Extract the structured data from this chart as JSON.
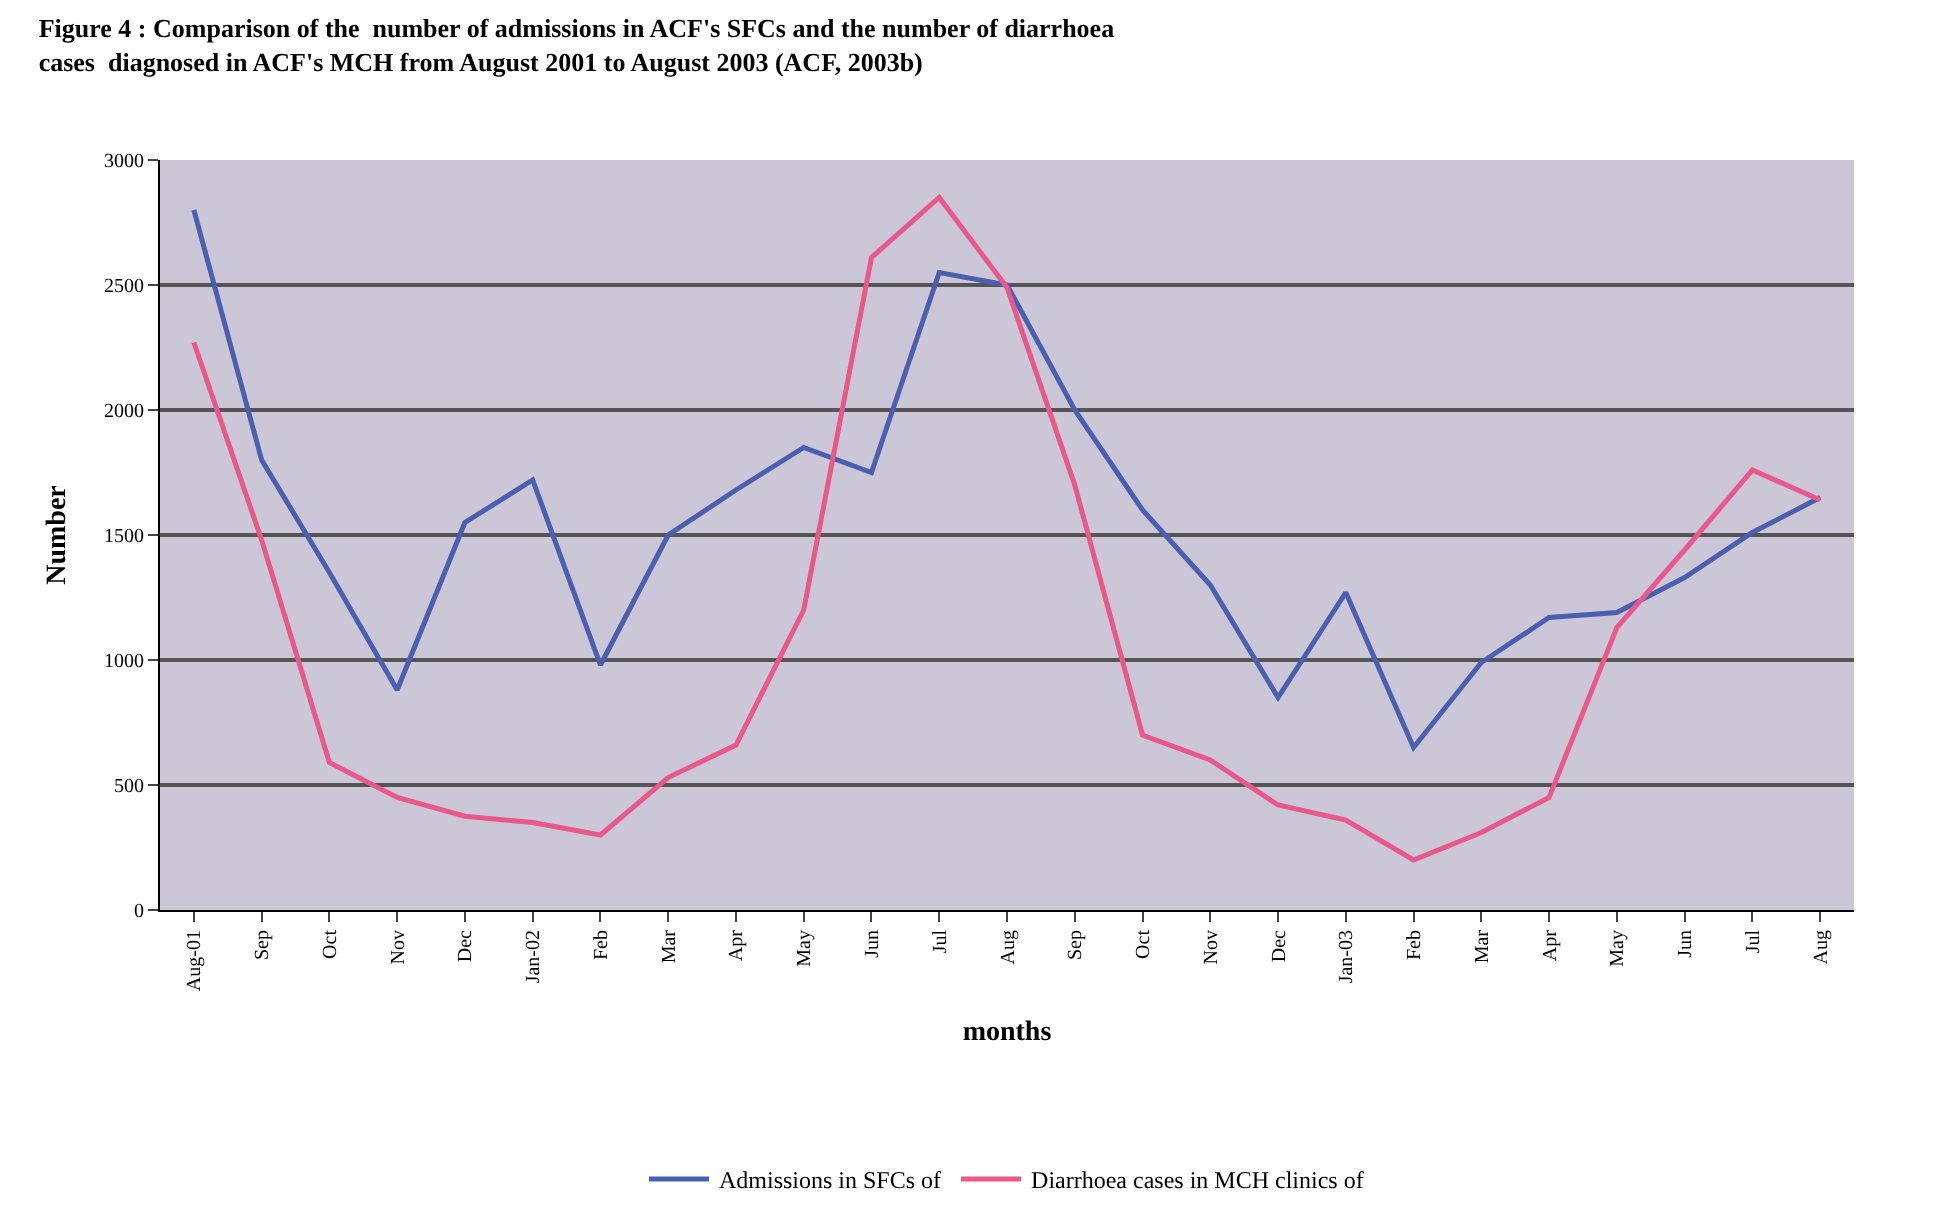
{
  "chart_data": {
    "type": "line",
    "title": "Figure 4 : Comparison of the  number of admissions in ACF's SFCs and the number of diarrhoea cases  diagnosed in ACF's MCH from August 2001 to August 2003 (ACF, 2003b)",
    "xlabel": "months",
    "ylabel": "Number",
    "categories": [
      "Aug-01",
      "Sep",
      "Oct",
      "Nov",
      "Dec",
      "Jan-02",
      "Feb",
      "Mar",
      "Apr",
      "May",
      "Jun",
      "Jul",
      "Aug",
      "Sep",
      "Oct",
      "Nov",
      "Dec",
      "Jan-03",
      "Feb",
      "Mar",
      "Apr",
      "May",
      "Jun",
      "Jul",
      "Aug"
    ],
    "series": [
      {
        "name": "Admissions in SFCs of",
        "color": "#4a5fb0",
        "values": [
          2800,
          1800,
          1350,
          880,
          1550,
          1720,
          980,
          1500,
          1680,
          1850,
          1750,
          2550,
          2500,
          2000,
          1600,
          1300,
          850,
          1270,
          650,
          990,
          1170,
          1190,
          1330,
          1510,
          1650
        ]
      },
      {
        "name": "Diarrhoea cases in MCH clinics of",
        "color": "#e8588a",
        "values": [
          2270,
          1480,
          590,
          450,
          375,
          350,
          300,
          530,
          660,
          1200,
          2610,
          2850,
          2490,
          1700,
          700,
          600,
          420,
          360,
          200,
          310,
          450,
          1130,
          1440,
          1760,
          1640
        ]
      }
    ],
    "ylim": [
      0,
      3000
    ],
    "yticks": [
      0,
      500,
      1000,
      1500,
      2000,
      2500,
      3000
    ],
    "grid": "y",
    "legend": "bottom",
    "marker": "none",
    "line_style": "solid"
  }
}
